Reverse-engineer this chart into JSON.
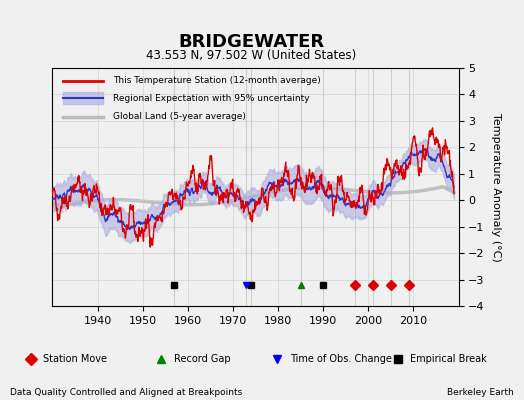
{
  "title": "BRIDGEWATER",
  "subtitle": "43.553 N, 97.502 W (United States)",
  "ylabel": "Temperature Anomaly (°C)",
  "xlabel_note": "Data Quality Controlled and Aligned at Breakpoints",
  "credit": "Berkeley Earth",
  "ylim": [
    -4,
    5
  ],
  "xlim": [
    1930,
    2020
  ],
  "xticks": [
    1940,
    1950,
    1960,
    1970,
    1980,
    1990,
    2000,
    2010
  ],
  "yticks": [
    -4,
    -3,
    -2,
    -1,
    0,
    1,
    2,
    3,
    4,
    5
  ],
  "station_moves": [
    1997,
    2001,
    2005,
    2009
  ],
  "record_gaps": [
    1985
  ],
  "tobs_changes": [
    1973
  ],
  "empirical_breaks": [
    1957,
    1974,
    1990
  ],
  "bg_color": "#f0f0f0",
  "plot_bg": "#f0f0f0",
  "red_color": "#dd0000",
  "blue_color": "#3333cc",
  "blue_fill": "#aaaadd",
  "gray_color": "#bbbbbb",
  "grid_color": "#cccccc"
}
